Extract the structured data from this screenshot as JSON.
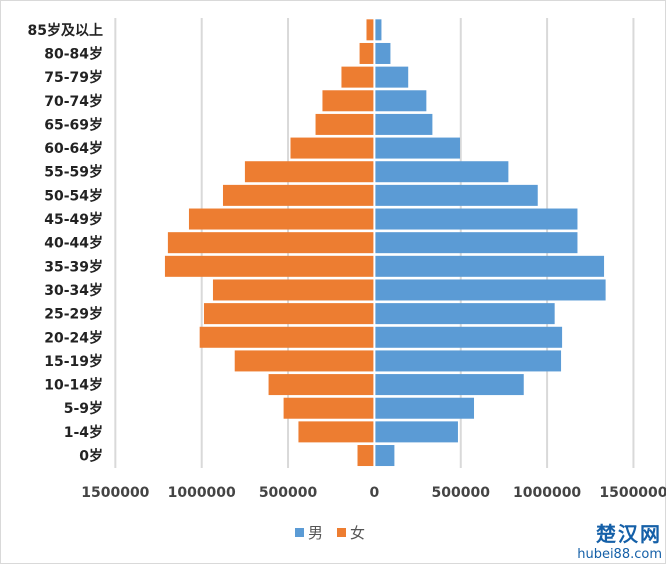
{
  "chart_data": {
    "type": "bar",
    "orientation": "horizontal",
    "subtype": "population-pyramid",
    "categories": [
      "85岁及以上",
      "80-84岁",
      "75-79岁",
      "70-74岁",
      "65-69岁",
      "60-64岁",
      "55-59岁",
      "50-54岁",
      "45-49岁",
      "40-44岁",
      "35-39岁",
      "30-34岁",
      "25-29岁",
      "20-24岁",
      "15-19岁",
      "10-14岁",
      "5-9岁",
      "1-4岁",
      "0岁"
    ],
    "series": [
      {
        "name": "男",
        "color": "#5b9bd5",
        "side": "right",
        "values": [
          35000,
          87000,
          190000,
          295000,
          330000,
          490000,
          770000,
          940000,
          1170000,
          1170000,
          1324000,
          1333000,
          1038000,
          1081000,
          1075000,
          859000,
          571000,
          478000,
          110000
        ]
      },
      {
        "name": "女",
        "color": "#ed7d31",
        "side": "left",
        "values": [
          40000,
          80000,
          185000,
          295000,
          335000,
          480000,
          744000,
          871000,
          1068000,
          1190000,
          1207000,
          929000,
          981000,
          1006000,
          803000,
          607000,
          520000,
          434000,
          92000
        ]
      }
    ],
    "xlim": [
      -1500000,
      1500000
    ],
    "xticks": [
      -1500000,
      -1000000,
      -500000,
      0,
      500000,
      1000000,
      1500000
    ],
    "xtick_labels": [
      "1500000",
      "1000000",
      "500000",
      "0",
      "500000",
      "1000000",
      "1500000"
    ],
    "grid": "vertical",
    "legend_position": "bottom",
    "title": "",
    "xlabel": "",
    "ylabel": ""
  },
  "watermark": {
    "name": "楚汉网",
    "url": "hubei88.com"
  }
}
